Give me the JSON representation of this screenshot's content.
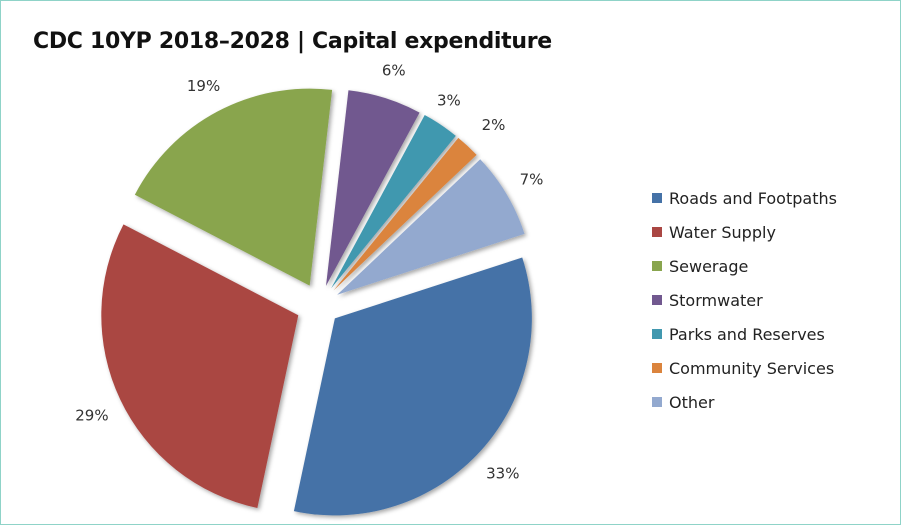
{
  "chart_data": {
    "type": "pie",
    "title": "CDC 10YP 2018–2028 | Capital expenditure",
    "exploded": true,
    "legend_position": "right",
    "slices": [
      {
        "label": "Roads and Footpaths",
        "value": 33,
        "value_label": "33%",
        "color": "#4572a7"
      },
      {
        "label": "Water Supply",
        "value": 29,
        "value_label": "29%",
        "color": "#aa4643"
      },
      {
        "label": "Sewerage",
        "value": 19,
        "value_label": "19%",
        "color": "#89a54e"
      },
      {
        "label": "Stormwater",
        "value": 6,
        "value_label": "6%",
        "color": "#71588f"
      },
      {
        "label": "Parks and Reserves",
        "value": 3,
        "value_label": "3%",
        "color": "#4198af"
      },
      {
        "label": "Community Services",
        "value": 2,
        "value_label": "2%",
        "color": "#db843d"
      },
      {
        "label": "Other",
        "value": 7,
        "value_label": "7%",
        "color": "#93a9cf"
      }
    ]
  }
}
